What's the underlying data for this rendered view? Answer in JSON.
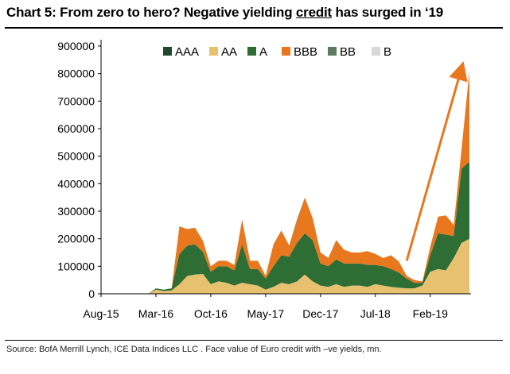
{
  "header": {
    "title_pre": "Chart 5: From zero to hero? Negative yielding ",
    "title_ul": "credit",
    "title_post": " has surged in ‘19"
  },
  "source": "Source:  BofA Merrill Lynch, ICE Data Indices LLC . Face value of Euro credit with –ve yields, mn.",
  "chart_data": {
    "type": "area",
    "stacked": true,
    "title": "Chart 5: From zero to hero? Negative yielding credit has surged in ‘19",
    "xlabel": "",
    "ylabel": "",
    "ylim": [
      0,
      900000
    ],
    "yticks": [
      0,
      100000,
      200000,
      300000,
      400000,
      500000,
      600000,
      700000,
      800000,
      900000
    ],
    "ytick_labels": [
      "0",
      "100000",
      "200000",
      "300000",
      "400000",
      "500000",
      "600000",
      "700000",
      "800000",
      "900000"
    ],
    "xtick_labels": [
      "Aug-15",
      "Mar-16",
      "Oct-16",
      "May-17",
      "Dec-17",
      "Jul-18",
      "Feb-19"
    ],
    "xtick_index": [
      0,
      7,
      14,
      21,
      28,
      35,
      42
    ],
    "x": [
      "Aug-15",
      "Sep-15",
      "Oct-15",
      "Nov-15",
      "Dec-15",
      "Jan-16",
      "Feb-16",
      "Mar-16",
      "Apr-16",
      "May-16",
      "Jun-16",
      "Jul-16",
      "Aug-16",
      "Sep-16",
      "Oct-16",
      "Nov-16",
      "Dec-16",
      "Jan-17",
      "Feb-17",
      "Mar-17",
      "Apr-17",
      "May-17",
      "Jun-17",
      "Jul-17",
      "Aug-17",
      "Sep-17",
      "Oct-17",
      "Nov-17",
      "Dec-17",
      "Jan-18",
      "Feb-18",
      "Mar-18",
      "Apr-18",
      "May-18",
      "Jun-18",
      "Jul-18",
      "Aug-18",
      "Sep-18",
      "Oct-18",
      "Nov-18",
      "Dec-18",
      "Jan-19",
      "Feb-19",
      "Mar-19",
      "Apr-19",
      "May-19",
      "Jun-19",
      "Jul-19"
    ],
    "grid": false,
    "legend_position": "top",
    "series": [
      {
        "name": "AAA",
        "color": "#1f4a2b",
        "values": [
          0,
          0,
          0,
          0,
          0,
          0,
          0,
          0,
          0,
          0,
          0,
          0,
          0,
          0,
          0,
          0,
          0,
          0,
          0,
          0,
          0,
          0,
          0,
          0,
          0,
          0,
          0,
          0,
          0,
          0,
          0,
          0,
          0,
          0,
          0,
          0,
          0,
          0,
          0,
          0,
          0,
          0,
          0,
          0,
          0,
          0,
          0,
          0
        ]
      },
      {
        "name": "AA",
        "color": "#e8c170",
        "values": [
          0,
          0,
          0,
          0,
          0,
          0,
          0,
          15000,
          10000,
          12000,
          35000,
          65000,
          70000,
          72000,
          35000,
          45000,
          40000,
          30000,
          40000,
          35000,
          30000,
          15000,
          25000,
          40000,
          35000,
          45000,
          70000,
          45000,
          30000,
          25000,
          35000,
          25000,
          30000,
          30000,
          25000,
          35000,
          30000,
          25000,
          22000,
          20000,
          20000,
          30000,
          80000,
          90000,
          85000,
          130000,
          185000,
          200000
        ]
      },
      {
        "name": "A",
        "color": "#2e6e35",
        "values": [
          0,
          0,
          0,
          0,
          0,
          0,
          0,
          5000,
          5000,
          8000,
          110000,
          110000,
          110000,
          80000,
          45000,
          55000,
          60000,
          55000,
          140000,
          55000,
          60000,
          40000,
          75000,
          100000,
          100000,
          140000,
          150000,
          150000,
          80000,
          75000,
          90000,
          85000,
          80000,
          80000,
          80000,
          70000,
          70000,
          65000,
          55000,
          35000,
          20000,
          10000,
          60000,
          130000,
          130000,
          80000,
          270000,
          280000
        ]
      },
      {
        "name": "BBB",
        "color": "#e8771e",
        "values": [
          0,
          0,
          0,
          0,
          0,
          0,
          0,
          0,
          0,
          0,
          100000,
          60000,
          60000,
          40000,
          20000,
          20000,
          20000,
          20000,
          90000,
          30000,
          30000,
          10000,
          80000,
          90000,
          40000,
          80000,
          130000,
          80000,
          40000,
          30000,
          70000,
          50000,
          40000,
          40000,
          50000,
          40000,
          30000,
          50000,
          40000,
          10000,
          10000,
          5000,
          30000,
          60000,
          70000,
          40000,
          70000,
          330000
        ]
      },
      {
        "name": "BB",
        "color": "#5c7a62",
        "values": [
          0,
          0,
          0,
          0,
          0,
          0,
          0,
          0,
          0,
          0,
          0,
          0,
          0,
          0,
          0,
          0,
          0,
          0,
          0,
          0,
          0,
          0,
          0,
          0,
          0,
          5000,
          0,
          0,
          0,
          0,
          0,
          0,
          0,
          0,
          0,
          0,
          0,
          0,
          0,
          0,
          0,
          0,
          0,
          0,
          0,
          0,
          0,
          0
        ]
      },
      {
        "name": "B",
        "color": "#d8d8d8",
        "values": [
          0,
          0,
          0,
          0,
          0,
          0,
          0,
          0,
          0,
          0,
          0,
          0,
          0,
          0,
          0,
          0,
          0,
          0,
          0,
          0,
          0,
          0,
          0,
          0,
          0,
          0,
          0,
          0,
          0,
          0,
          0,
          0,
          0,
          0,
          0,
          0,
          0,
          0,
          0,
          0,
          0,
          0,
          0,
          0,
          0,
          0,
          0,
          0
        ]
      }
    ],
    "annotations": [
      {
        "type": "arrow",
        "color": "#e8771e",
        "from": {
          "x_index": 39,
          "y": 120000
        },
        "to": {
          "x_index": 46,
          "y": 820000
        }
      }
    ]
  }
}
